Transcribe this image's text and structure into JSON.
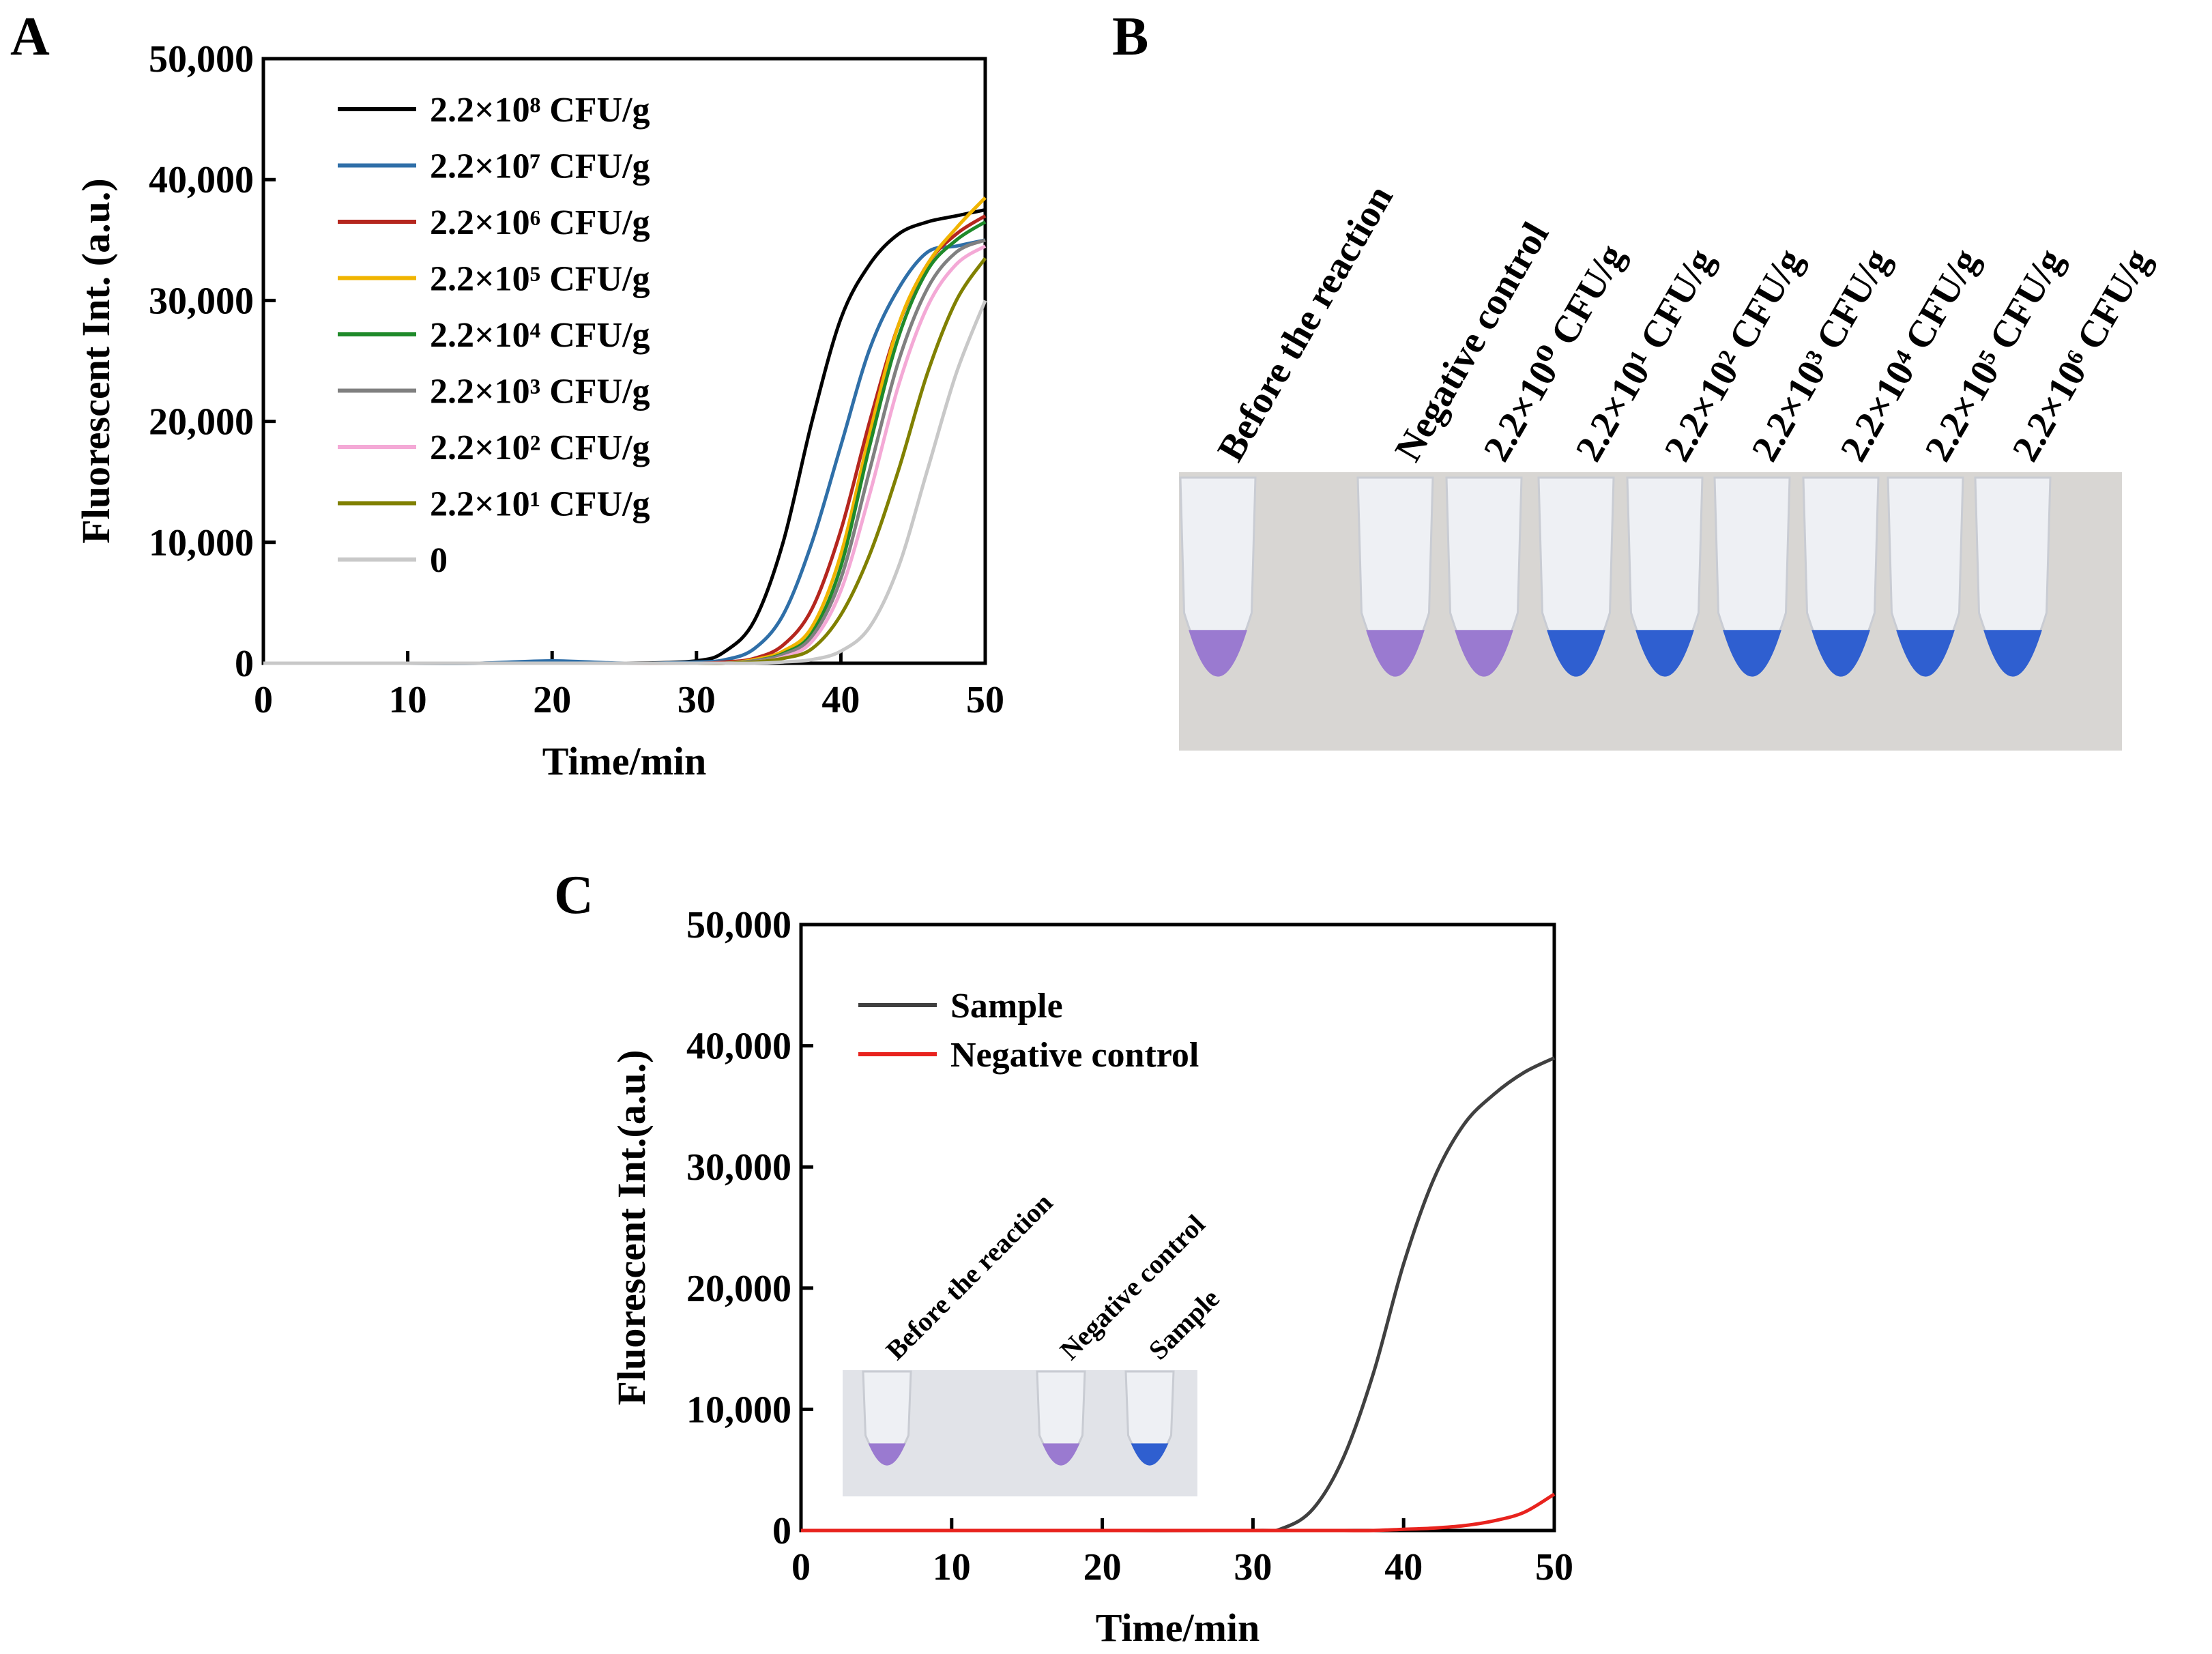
{
  "panels": {
    "a": {
      "label": "A"
    },
    "b": {
      "label": "B"
    },
    "c": {
      "label": "C"
    }
  },
  "colors": {
    "2.2×10⁸": "#000000",
    "2.2×10⁷": "#2f6fa8",
    "2.2×10⁶": "#b5261e",
    "2.2×10⁵": "#f0b400",
    "2.2×10⁴": "#1f8a2a",
    "2.2×10³": "#808080",
    "2.2×10²": "#f4a9d6",
    "2.2×10¹": "#808000",
    "zero": "#c8c8c8",
    "sample": "#404040",
    "negative": "#e8231e",
    "tube_purple": "#9a7ad0",
    "tube_blue": "#2f5fd0",
    "photo_bg": "#d8d6d3"
  },
  "chart_data": [
    {
      "type": "line",
      "panel": "A",
      "xlabel": "Time/min",
      "ylabel": "Fluorescent Int. (a.u.)",
      "xlim": [
        0,
        50
      ],
      "ylim": [
        0,
        50000
      ],
      "xticks": [
        "0",
        "10",
        "20",
        "30",
        "40",
        "50"
      ],
      "yticks": [
        "0",
        "10,000",
        "20,000",
        "30,000",
        "40,000",
        "50,000"
      ],
      "legend_position": "top-right",
      "x": [
        0,
        5,
        10,
        15,
        20,
        25,
        30,
        32,
        34,
        36,
        38,
        40,
        42,
        44,
        46,
        48,
        50
      ],
      "series": [
        {
          "name": "2.2×10⁸ CFU/g",
          "color_key": "2.2×10⁸",
          "values": [
            0,
            0,
            0,
            0,
            100,
            0,
            200,
            1000,
            3500,
            10000,
            20000,
            28500,
            33000,
            35500,
            36500,
            37000,
            37500
          ]
        },
        {
          "name": "2.2×10⁷ CFU/g",
          "color_key": "2.2×10⁷",
          "values": [
            0,
            0,
            0,
            0,
            200,
            0,
            100,
            300,
            1200,
            4000,
            10000,
            18000,
            26000,
            31000,
            34000,
            34500,
            35000
          ]
        },
        {
          "name": "2.2×10⁶ CFU/g",
          "color_key": "2.2×10⁶",
          "values": [
            0,
            0,
            0,
            0,
            0,
            0,
            0,
            100,
            400,
            1500,
            4500,
            11000,
            20000,
            28000,
            33000,
            35500,
            37000
          ]
        },
        {
          "name": "2.2×10⁵ CFU/g",
          "color_key": "2.2×10⁵",
          "values": [
            0,
            0,
            0,
            0,
            0,
            0,
            0,
            0,
            300,
            1000,
            3000,
            9000,
            19000,
            28000,
            33000,
            36000,
            38500
          ]
        },
        {
          "name": "2.2×10⁴ CFU/g",
          "color_key": "2.2×10⁴",
          "values": [
            0,
            0,
            0,
            0,
            0,
            0,
            0,
            0,
            200,
            800,
            2500,
            8000,
            18000,
            27000,
            32500,
            35000,
            36500
          ]
        },
        {
          "name": "2.2×10³ CFU/g",
          "color_key": "2.2×10³",
          "values": [
            0,
            0,
            0,
            0,
            0,
            0,
            0,
            0,
            200,
            700,
            2200,
            7000,
            16000,
            25000,
            31000,
            34000,
            35000
          ]
        },
        {
          "name": "2.2×10² CFU/g",
          "color_key": "2.2×10²",
          "values": [
            0,
            0,
            0,
            0,
            0,
            0,
            0,
            0,
            100,
            500,
            1800,
            6000,
            14000,
            23000,
            29500,
            33000,
            34500
          ]
        },
        {
          "name": "2.2×10¹ CFU/g",
          "color_key": "2.2×10¹",
          "values": [
            0,
            0,
            0,
            0,
            0,
            0,
            0,
            0,
            100,
            400,
            1200,
            4000,
            9000,
            16000,
            24000,
            30000,
            33500
          ]
        },
        {
          "name": "0",
          "color_key": "zero",
          "values": [
            0,
            0,
            0,
            0,
            0,
            0,
            0,
            0,
            0,
            100,
            300,
            1000,
            3000,
            8000,
            16000,
            24000,
            30000
          ]
        }
      ]
    },
    {
      "type": "line",
      "panel": "C",
      "xlabel": "Time/min",
      "ylabel": "Fluorescent Int.(a.u.)",
      "xlim": [
        0,
        50
      ],
      "ylim": [
        0,
        50000
      ],
      "xticks": [
        "0",
        "10",
        "20",
        "30",
        "40",
        "50"
      ],
      "yticks": [
        "0",
        "10,000",
        "20,000",
        "30,000",
        "40,000",
        "50,000"
      ],
      "legend_position": "top-left",
      "x": [
        0,
        10,
        20,
        30,
        32,
        34,
        36,
        38,
        40,
        42,
        44,
        46,
        48,
        50
      ],
      "series": [
        {
          "name": "Sample",
          "color_key": "sample",
          "values": [
            0,
            0,
            0,
            0,
            200,
            1800,
            6000,
            13000,
            22000,
            29000,
            33500,
            36000,
            37800,
            39000
          ]
        },
        {
          "name": "Negative control",
          "color_key": "negative",
          "values": [
            0,
            0,
            0,
            0,
            0,
            0,
            0,
            0,
            100,
            200,
            400,
            800,
            1500,
            3000
          ]
        }
      ]
    }
  ],
  "photo_b": {
    "labels": [
      "Before the reaction",
      "Negative control",
      "2.2×10⁰ CFU/g",
      "2.2×10¹ CFU/g",
      "2.2×10² CFU/g",
      "2.2×10³ CFU/g",
      "2.2×10⁴ CFU/g",
      "2.2×10⁵ CFU/g",
      "2.2×10⁶ CFU/g"
    ],
    "tube_colors": [
      "tube_purple",
      "tube_purple",
      "tube_purple",
      "tube_blue",
      "tube_blue",
      "tube_blue",
      "tube_blue",
      "tube_blue",
      "tube_blue"
    ]
  },
  "photo_c": {
    "labels": [
      "Before the reaction",
      "Negative control",
      "Sample"
    ],
    "tube_colors": [
      "tube_purple",
      "tube_purple",
      "tube_blue"
    ]
  }
}
